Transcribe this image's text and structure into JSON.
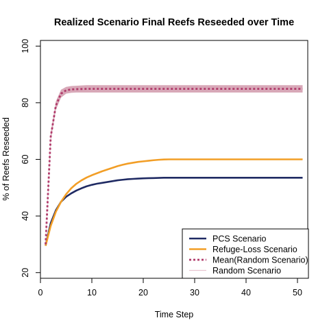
{
  "chart_data": {
    "type": "line",
    "title": "Realized Scenario Final Reefs Reseeded over Time",
    "xlabel": "Time Step",
    "ylabel": "%  of Reefs Reseeded",
    "xlim": [
      0,
      52
    ],
    "ylim": [
      18,
      102
    ],
    "x_ticks": [
      0,
      10,
      20,
      30,
      40,
      50
    ],
    "y_ticks": [
      20,
      40,
      60,
      80,
      100
    ],
    "grid": false,
    "legend_position": "bottom-right",
    "x": [
      1,
      2,
      3,
      4,
      5,
      6,
      7,
      8,
      9,
      10,
      11,
      12,
      13,
      14,
      15,
      16,
      17,
      18,
      19,
      20,
      21,
      22,
      23,
      24,
      25,
      26,
      27,
      28,
      29,
      30,
      31,
      32,
      33,
      34,
      35,
      36,
      37,
      38,
      39,
      40,
      41,
      42,
      43,
      44,
      45,
      46,
      47,
      48,
      49,
      50,
      51
    ],
    "series": [
      {
        "name": "PCS Scenario",
        "color": "#1f2a63",
        "style": "solid",
        "values": [
          29.5,
          37.5,
          42.0,
          45.0,
          46.8,
          48.0,
          49.0,
          49.8,
          50.5,
          51.0,
          51.4,
          51.7,
          52.0,
          52.3,
          52.6,
          52.8,
          53.0,
          53.1,
          53.2,
          53.3,
          53.35,
          53.4,
          53.45,
          53.5,
          53.5,
          53.5,
          53.5,
          53.5,
          53.5,
          53.5,
          53.5,
          53.5,
          53.5,
          53.5,
          53.5,
          53.5,
          53.5,
          53.5,
          53.5,
          53.5,
          53.5,
          53.5,
          53.5,
          53.5,
          53.5,
          53.5,
          53.5,
          53.5,
          53.5,
          53.5,
          53.5
        ]
      },
      {
        "name": "Refuge-Loss Scenario",
        "color": "#f29e26",
        "style": "solid",
        "values": [
          29.5,
          36.5,
          41.5,
          45.0,
          47.7,
          49.8,
          51.4,
          52.6,
          53.6,
          54.4,
          55.1,
          55.8,
          56.4,
          57.0,
          57.6,
          58.1,
          58.5,
          58.8,
          59.1,
          59.3,
          59.5,
          59.7,
          59.85,
          59.95,
          60.0,
          60.0,
          60.0,
          60.0,
          60.0,
          60.0,
          60.0,
          60.0,
          60.0,
          60.0,
          60.0,
          60.0,
          60.0,
          60.0,
          60.0,
          60.0,
          60.0,
          60.0,
          60.0,
          60.0,
          60.0,
          60.0,
          60.0,
          60.0,
          60.0,
          60.0,
          60.0
        ]
      },
      {
        "name": "Mean(Random Scenario)",
        "color": "#b03a6a",
        "style": "dotted",
        "values": [
          30.0,
          68.0,
          79.0,
          83.2,
          84.4,
          84.7,
          84.8,
          84.85,
          84.9,
          84.9,
          84.9,
          84.9,
          84.9,
          84.9,
          84.9,
          84.9,
          84.9,
          84.9,
          84.9,
          84.9,
          84.9,
          84.9,
          84.9,
          84.9,
          84.9,
          84.9,
          84.9,
          84.9,
          84.9,
          84.9,
          84.9,
          84.9,
          84.9,
          84.9,
          84.9,
          84.9,
          84.9,
          84.9,
          84.9,
          84.9,
          84.9,
          84.9,
          84.9,
          84.9,
          84.9,
          84.9,
          84.9,
          84.9,
          84.9,
          84.9,
          84.9
        ]
      },
      {
        "name": "Random Scenario",
        "color": "#d8a8b8",
        "style": "band",
        "lower": [
          29.0,
          66.5,
          77.5,
          81.8,
          83.2,
          83.5,
          83.6,
          83.6,
          83.6,
          83.6,
          83.6,
          83.6,
          83.6,
          83.6,
          83.6,
          83.6,
          83.6,
          83.6,
          83.6,
          83.6,
          83.6,
          83.6,
          83.6,
          83.6,
          83.6,
          83.6,
          83.6,
          83.6,
          83.6,
          83.6,
          83.6,
          83.6,
          83.6,
          83.6,
          83.6,
          83.6,
          83.6,
          83.6,
          83.6,
          83.6,
          83.6,
          83.6,
          83.6,
          83.6,
          83.6,
          83.6,
          83.6,
          83.6,
          83.6,
          83.6,
          83.6
        ],
        "upper": [
          31.0,
          69.5,
          80.5,
          84.6,
          85.6,
          85.9,
          86.0,
          86.1,
          86.2,
          86.2,
          86.2,
          86.2,
          86.2,
          86.2,
          86.2,
          86.2,
          86.2,
          86.2,
          86.2,
          86.2,
          86.2,
          86.2,
          86.2,
          86.2,
          86.2,
          86.2,
          86.2,
          86.2,
          86.2,
          86.2,
          86.2,
          86.2,
          86.2,
          86.2,
          86.2,
          86.2,
          86.2,
          86.2,
          86.2,
          86.2,
          86.2,
          86.2,
          86.2,
          86.2,
          86.2,
          86.2,
          86.2,
          86.2,
          86.2,
          86.2,
          86.2
        ]
      }
    ],
    "legend": [
      {
        "label": "PCS Scenario",
        "color": "#1f2a63",
        "style": "solid"
      },
      {
        "label": "Refuge-Loss Scenario",
        "color": "#f29e26",
        "style": "solid"
      },
      {
        "label": "Mean(Random Scenario)",
        "color": "#b03a6a",
        "style": "dotted"
      },
      {
        "label": "Random Scenario",
        "color": "#e8c4d0",
        "style": "thin"
      }
    ]
  }
}
